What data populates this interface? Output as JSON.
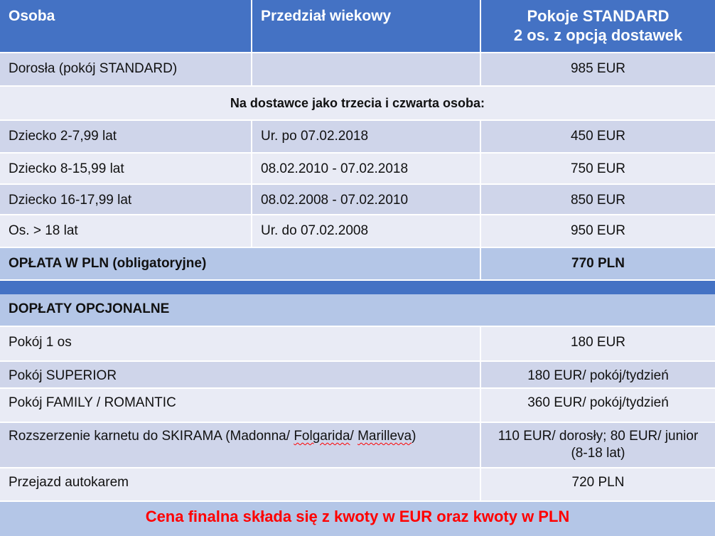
{
  "header": {
    "col1": "Osoba",
    "col2": "Przedział wiekowy",
    "col3_line1": "Pokoje STANDARD",
    "col3_line2": "2 os. z  opcją dostawek"
  },
  "adult_row": {
    "person": "Dorosła (pokój STANDARD)",
    "age": "",
    "price": "985 EUR"
  },
  "extra_bed_note": "Na dostawce jako trzecia i czwarta osoba:",
  "extra_bed_rows": [
    {
      "person": "Dziecko 2-7,99 lat",
      "age": "Ur. po 07.02.2018",
      "price": "450 EUR"
    },
    {
      "person": "Dziecko 8-15,99 lat",
      "age": "08.02.2010 - 07.02.2018",
      "price": "750 EUR"
    },
    {
      "person": "Dziecko 16-17,99 lat",
      "age": "08.02.2008 - 07.02.2010",
      "price": "850 EUR"
    },
    {
      "person": "Os. > 18 lat",
      "age": "Ur. do 07.02.2008",
      "price": "950 EUR"
    }
  ],
  "fee_row": {
    "label": "OPŁATA W PLN (obligatoryjne)",
    "price": "770 PLN"
  },
  "optional": {
    "title": "DOPŁATY OPCJONALNE",
    "rows": [
      {
        "label": "Pokój 1 os",
        "price": "180 EUR"
      },
      {
        "label": "Pokój SUPERIOR",
        "price": "180 EUR/ pokój/tydzień"
      },
      {
        "label": "Pokój FAMILY / ROMANTIC",
        "price": "360 EUR/ pokój/tydzień"
      },
      {
        "label_start": "Rozszerzenie karnetu do SKIRAMA (Madonna/ ",
        "label_folgarida": "Folgarida",
        "label_sep": "/ ",
        "label_marilleva": "Marilleva",
        "label_end": ")",
        "price_line1": "110 EUR/ dorosły; 80 EUR/ junior",
        "price_line2": "(8-18 lat)"
      },
      {
        "label": "Przejazd autokarem",
        "price": "720 PLN"
      }
    ]
  },
  "footer_note": "Cena finalna składa się z kwoty  w EUR oraz kwoty w PLN",
  "colors": {
    "header_bg": "#4472c4",
    "row_dark": "#cfd5ea",
    "row_light": "#e9ebf5",
    "row_mid": "#b4c6e7",
    "footer_text": "#ff0000"
  }
}
